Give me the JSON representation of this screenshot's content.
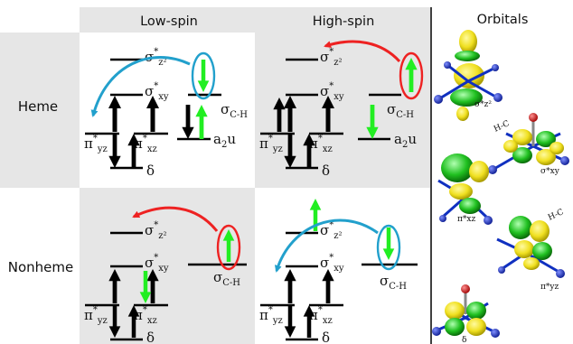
{
  "columns": {
    "low_spin": "Low-spin",
    "high_spin": "High-spin",
    "orbitals": "Orbitals"
  },
  "rows": {
    "heme": "Heme",
    "nonheme": "Nonheme"
  },
  "level_labels": {
    "sigma": "σ",
    "pi": "π",
    "star": "*",
    "z2": "z²",
    "xy": "xy",
    "yz": "yz",
    "xz": "xz",
    "delta": "δ",
    "sigma_ch_sub": "C-H",
    "a2u_main": "a",
    "a2u_sub": "2",
    "a2u_tail": "u"
  },
  "orbital_labels": {
    "z2": "σ*z²",
    "xy": "σ*xy",
    "xz": "π*xz",
    "yz": "π*yz",
    "delta": "δ",
    "hc": "H-C"
  },
  "colors": {
    "panel_gray": "#e6e6e6",
    "electron_black": "#000000",
    "electron_green": "#22ee22",
    "transfer_red": "#ee2222",
    "transfer_blue": "#22a0cc",
    "orbital_yellow": "#f0e020",
    "orbital_green": "#20c020",
    "atom_blue": "#1030c0",
    "atom_red": "#e01010"
  }
}
